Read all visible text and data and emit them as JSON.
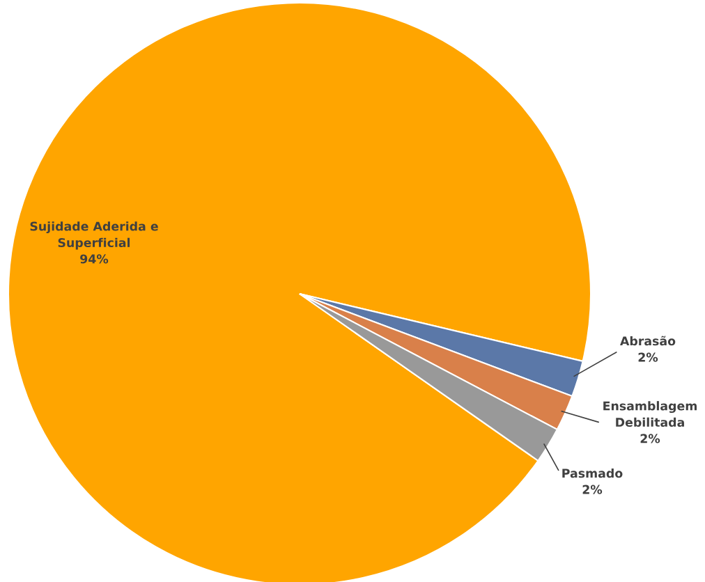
{
  "chart_data": {
    "type": "pie",
    "categories": [
      "Sujidade Aderida e\nSuperficial",
      "Abrasão",
      "Ensamblagem\nDebilitada",
      "Pasmado"
    ],
    "values": [
      94,
      2,
      2,
      2
    ],
    "colors": [
      "#ffa500",
      "#5b78a8",
      "#d9804a",
      "#999999"
    ],
    "value_labels": [
      "94%",
      "2%",
      "2%",
      "2%"
    ]
  }
}
